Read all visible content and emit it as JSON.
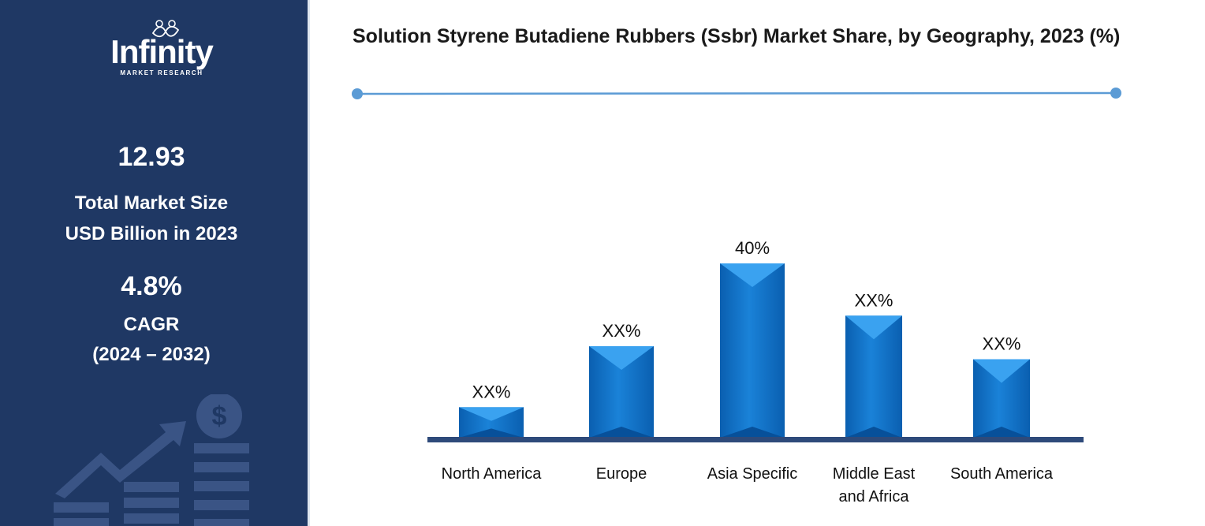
{
  "brand": {
    "name": "Infinity",
    "tagline": "MARKET RESEARCH"
  },
  "sidebar": {
    "market_size_value": "12.93",
    "market_size_label_1": "Total Market Size",
    "market_size_label_2": "USD Billion in 2023",
    "cagr_value": "4.8%",
    "cagr_label": "CAGR",
    "cagr_period": "(2024 – 2032)"
  },
  "colors": {
    "sidebar_bg": "#1f3864",
    "bar_main": "#0b6fc9",
    "bar_light": "#3aa2f0",
    "bar_dark": "#07509a",
    "baseline": "#2e4a7a",
    "accent_line": "#5b9bd5"
  },
  "icons": [
    "dollar-coin-icon",
    "rising-arrow-icon",
    "bar-stack-icon"
  ],
  "chart_data": {
    "type": "bar",
    "title": "Solution Styrene Butadiene Rubbers (Ssbr) Market Share, by Geography, 2023 (%)",
    "categories": [
      "North America",
      "Europe",
      "Asia Specific",
      "Middle East and Africa",
      "South America"
    ],
    "category_lines": [
      [
        "North America"
      ],
      [
        "Europe"
      ],
      [
        "Asia Specific"
      ],
      [
        "Middle East",
        "and Africa"
      ],
      [
        "South America"
      ]
    ],
    "values": [
      7,
      21,
      40,
      28,
      18
    ],
    "data_labels": [
      "XX%",
      "XX%",
      "40%",
      "XX%",
      "XX%"
    ],
    "ylim": [
      0,
      40
    ],
    "grid": false,
    "legend": "none"
  }
}
